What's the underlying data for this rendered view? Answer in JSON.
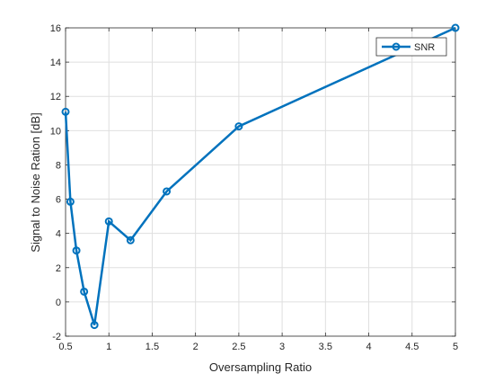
{
  "chart_data": {
    "type": "line",
    "xlabel": "Oversampling Ratio",
    "ylabel": "Signal to Noise Ration [dB]",
    "xlim": [
      0.5,
      5
    ],
    "ylim": [
      -2,
      16
    ],
    "xticks": [
      0.5,
      1,
      1.5,
      2,
      2.5,
      3,
      3.5,
      4,
      4.5,
      5
    ],
    "xtick_labels": [
      "0.5",
      "1",
      "1.5",
      "2",
      "2.5",
      "3",
      "3.5",
      "4",
      "4.5",
      "5"
    ],
    "yticks": [
      -2,
      0,
      2,
      4,
      6,
      8,
      10,
      12,
      14,
      16
    ],
    "ytick_labels": [
      "-2",
      "0",
      "2",
      "4",
      "6",
      "8",
      "10",
      "12",
      "14",
      "16"
    ],
    "grid": true,
    "legend_position": "top-right",
    "series": [
      {
        "name": "SNR",
        "color": "#0072BD",
        "marker": "circle",
        "x": [
          0.5,
          0.556,
          0.625,
          0.714,
          0.833,
          1.0,
          1.25,
          1.667,
          2.5,
          5.0
        ],
        "y": [
          11.1,
          5.85,
          3.0,
          0.6,
          -1.35,
          4.7,
          3.6,
          6.45,
          10.25,
          16.0
        ]
      }
    ]
  }
}
